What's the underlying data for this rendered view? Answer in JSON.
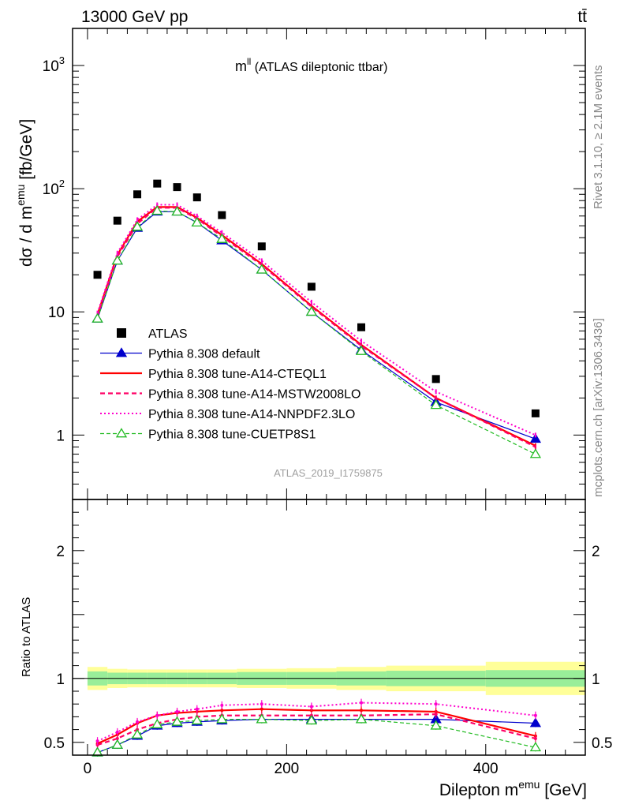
{
  "header": {
    "left": "13000 GeV pp",
    "right": "tt̄"
  },
  "side": {
    "rivet": "Rivet 3.1.10, ≥ 2.1M events",
    "mcplots": "mcplots.cern.ch [arXiv:1306.3436]"
  },
  "plot_title": {
    "main": "m",
    "sup": "ll",
    "rest": " (ATLAS dileptonic ttbar)"
  },
  "watermark": "ATLAS_2019_I1759875",
  "ylabel_top": {
    "pre": "dσ / d m",
    "sup": "emu",
    "post": " [fb/GeV]"
  },
  "ylabel_bottom": "Ratio to ATLAS",
  "xlabel": {
    "pre": "Dilepton m",
    "sup": "emu",
    "post": " [GeV]"
  },
  "chart_data": [
    {
      "type": "scatter",
      "panel": "main",
      "log_y": true,
      "xlim": [
        -15,
        500
      ],
      "ylim": [
        0.3,
        2000
      ],
      "x_ticks": [
        0,
        200,
        400
      ],
      "y_ticks": [
        {
          "value": 1,
          "label": "1"
        },
        {
          "value": 10,
          "label": "10"
        },
        {
          "value": 100,
          "label": "10",
          "sup": "2"
        },
        {
          "value": 1000,
          "label": "10",
          "sup": "3"
        }
      ],
      "x": [
        10,
        30,
        50,
        70,
        90,
        110,
        135,
        175,
        225,
        275,
        350,
        450
      ],
      "series": [
        {
          "name": "ATLAS",
          "style": "data",
          "color": "#000000",
          "values": [
            20,
            55,
            90,
            110,
            103,
            85,
            61,
            34,
            16,
            7.5,
            2.85,
            1.5
          ]
        },
        {
          "name": "Pythia 8.308 default",
          "style": "solid-triangle",
          "color": "#0000cc",
          "values": [
            8.8,
            26,
            48,
            65,
            65,
            53,
            38,
            22,
            10,
            4.9,
            1.85,
            0.93
          ]
        },
        {
          "name": "Pythia 8.308 tune-A14-CTEQL1",
          "style": "solid",
          "color": "#ff0000",
          "values": [
            9.5,
            29,
            54,
            71,
            71,
            58,
            42,
            24.5,
            11.2,
            5.4,
            2.0,
            0.82
          ]
        },
        {
          "name": "Pythia 8.308 tune-A14-MSTW2008LO",
          "style": "dashed",
          "color": "#ff0066",
          "values": [
            9.3,
            28,
            52,
            70,
            70,
            57,
            41,
            24,
            11.0,
            5.3,
            2.0,
            0.8
          ]
        },
        {
          "name": "Pythia 8.308 tune-A14-NNPDF2.3LO",
          "style": "dotted",
          "color": "#ff00cc",
          "values": [
            9.8,
            30,
            56,
            74,
            74,
            60,
            44,
            26,
            12.0,
            5.8,
            2.25,
            1.0
          ]
        },
        {
          "name": "Pythia 8.308 tune-CUETP8S1",
          "style": "dashed-open-triangle",
          "color": "#22bb22",
          "values": [
            8.8,
            26,
            49,
            66,
            65,
            53,
            39,
            22,
            10.0,
            4.8,
            1.75,
            0.7
          ]
        }
      ]
    },
    {
      "type": "line",
      "panel": "ratio",
      "ylabel": "Ratio to ATLAS",
      "xlabel": "Dilepton m^emu [GeV]",
      "xlim": [
        -15,
        500
      ],
      "ylim": [
        0.4,
        2.4
      ],
      "x_ticks": [
        0,
        200,
        400
      ],
      "y_ticks": [
        0.5,
        1,
        2
      ],
      "bins": [
        [
          0,
          20
        ],
        [
          20,
          40
        ],
        [
          40,
          60
        ],
        [
          60,
          80
        ],
        [
          80,
          100
        ],
        [
          100,
          120
        ],
        [
          120,
          150
        ],
        [
          150,
          200
        ],
        [
          200,
          250
        ],
        [
          250,
          300
        ],
        [
          300,
          400
        ],
        [
          400,
          500
        ]
      ],
      "band_inner": [
        0.055,
        0.045,
        0.045,
        0.045,
        0.045,
        0.045,
        0.045,
        0.05,
        0.05,
        0.055,
        0.06,
        0.065
      ],
      "band_outer": [
        0.09,
        0.075,
        0.07,
        0.07,
        0.07,
        0.07,
        0.07,
        0.075,
        0.08,
        0.09,
        0.1,
        0.13
      ],
      "x": [
        10,
        30,
        50,
        70,
        90,
        110,
        135,
        175,
        225,
        275,
        350,
        450
      ],
      "series": [
        {
          "name": "Pythia 8.308 default",
          "values": [
            0.42,
            0.48,
            0.55,
            0.63,
            0.65,
            0.66,
            0.67,
            0.68,
            0.68,
            0.68,
            0.68,
            0.65
          ]
        },
        {
          "name": "Pythia 8.308 tune-A14-CTEQL1",
          "values": [
            0.49,
            0.56,
            0.65,
            0.71,
            0.73,
            0.74,
            0.75,
            0.76,
            0.75,
            0.75,
            0.74,
            0.55
          ]
        },
        {
          "name": "Pythia 8.308 tune-A14-MSTW2008LO",
          "values": [
            0.48,
            0.53,
            0.6,
            0.65,
            0.68,
            0.7,
            0.71,
            0.71,
            0.71,
            0.71,
            0.72,
            0.53
          ]
        },
        {
          "name": "Pythia 8.308 tune-A14-NNPDF2.3LO",
          "values": [
            0.51,
            0.58,
            0.66,
            0.71,
            0.74,
            0.76,
            0.79,
            0.8,
            0.78,
            0.81,
            0.8,
            0.71
          ]
        },
        {
          "name": "Pythia 8.308 tune-CUETP8S1",
          "values": [
            0.42,
            0.48,
            0.56,
            0.64,
            0.66,
            0.67,
            0.68,
            0.68,
            0.67,
            0.68,
            0.63,
            0.46
          ]
        }
      ]
    }
  ]
}
